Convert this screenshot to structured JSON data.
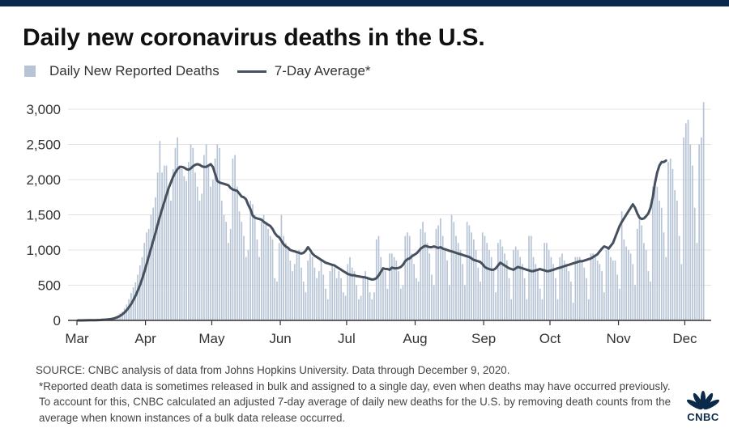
{
  "title": "Daily new coronavirus deaths in the U.S.",
  "legend": {
    "bars": "Daily New Reported Deaths",
    "line": "7-Day Average*"
  },
  "colors": {
    "bar": "#b6c4d6",
    "line": "#46505e",
    "grid": "#e3e3e3",
    "axis": "#333333",
    "brand": "#0b2a4a"
  },
  "footer": {
    "source": "SOURCE: CNBC analysis of data from Johns Hopkins University. Data through December 9, 2020.",
    "note": "*Reported death data is sometimes released in bulk and assigned to a single day, even when deaths may have occurred previously. To account for this, CNBC calculated an adjusted 7-day average of daily new deaths for the U.S. by removing death counts from the average when known instances of a bulk data release occurred."
  },
  "logo": {
    "text": "CNBC"
  },
  "chart_data": {
    "type": "bar",
    "title": "Daily new coronavirus deaths in the U.S.",
    "xlabel": "",
    "ylabel": "",
    "ylim": [
      0,
      3200
    ],
    "yticks": [
      0,
      500,
      1000,
      1500,
      2000,
      2500,
      3000
    ],
    "ytick_labels": [
      "0",
      "500",
      "1,000",
      "1,500",
      "2,000",
      "2,500",
      "3,000"
    ],
    "xticks": [
      {
        "label": "Mar",
        "day": 0
      },
      {
        "label": "Apr",
        "day": 31
      },
      {
        "label": "May",
        "day": 61
      },
      {
        "label": "Jun",
        "day": 92
      },
      {
        "label": "Jul",
        "day": 122
      },
      {
        "label": "Aug",
        "day": 153
      },
      {
        "label": "Sep",
        "day": 184
      },
      {
        "label": "Oct",
        "day": 214
      },
      {
        "label": "Nov",
        "day": 245
      },
      {
        "label": "Dec",
        "day": 275
      }
    ],
    "x_start": "2020-03-01",
    "x_end": "2020-12-09",
    "series": [
      {
        "name": "Daily New Reported Deaths",
        "type": "bar",
        "values": [
          0,
          1,
          1,
          2,
          3,
          3,
          4,
          5,
          6,
          8,
          10,
          12,
          15,
          18,
          23,
          28,
          38,
          55,
          70,
          100,
          125,
          170,
          225,
          300,
          390,
          470,
          540,
          650,
          780,
          900,
          1100,
          1250,
          1300,
          1500,
          1600,
          1750,
          2100,
          2550,
          2100,
          2200,
          2200,
          1900,
          1700,
          2150,
          2450,
          2600,
          2200,
          2150,
          2050,
          1980,
          2250,
          2500,
          2450,
          2100,
          1900,
          1700,
          1800,
          2350,
          2500,
          2200,
          1900,
          2000,
          2300,
          2500,
          2450,
          1700,
          1500,
          1400,
          1100,
          1300,
          2300,
          2350,
          1900,
          1550,
          1400,
          1200,
          900,
          1000,
          1700,
          1650,
          1500,
          1150,
          900,
          1400,
          1500,
          1400,
          1300,
          1200,
          1150,
          600,
          550,
          1100,
          1500,
          1200,
          1100,
          1050,
          850,
          700,
          800,
          950,
          1000,
          750,
          550,
          400,
          850,
          950,
          900,
          750,
          600,
          700,
          850,
          650,
          450,
          300,
          700,
          800,
          750,
          600,
          700,
          600,
          400,
          350,
          800,
          900,
          750,
          700,
          500,
          300,
          350,
          600,
          700,
          600,
          400,
          300,
          400,
          1150,
          1200,
          900,
          750,
          700,
          450,
          950,
          950,
          900,
          850,
          700,
          450,
          500,
          1200,
          1250,
          1200,
          950,
          800,
          600,
          550,
          1300,
          1400,
          1250,
          1100,
          950,
          650,
          500,
          1300,
          1350,
          1450,
          1200,
          1000,
          850,
          500,
          1500,
          1400,
          1200,
          1100,
          1000,
          800,
          500,
          1400,
          1350,
          1250,
          1150,
          1000,
          750,
          550,
          1250,
          1200,
          1100,
          1000,
          900,
          700,
          400,
          1100,
          1150,
          1050,
          950,
          850,
          600,
          300,
          1000,
          1050,
          1000,
          900,
          800,
          600,
          300,
          1200,
          1200,
          900,
          800,
          700,
          450,
          300,
          1100,
          1100,
          1000,
          900,
          800,
          600,
          300,
          900,
          950,
          850,
          800,
          700,
          550,
          250,
          900,
          900,
          900,
          850,
          750,
          600,
          300,
          950,
          950,
          900,
          850,
          800,
          700,
          400,
          1000,
          1000,
          900,
          850,
          850,
          650,
          450,
          1550,
          1150,
          1050,
          1000,
          950,
          800,
          500,
          1300,
          1450,
          1350,
          1100,
          1000,
          700,
          550,
          1900,
          2000,
          1900,
          1700,
          1600,
          1250,
          900,
          2250,
          2300,
          2150,
          1850,
          1700,
          1200,
          800,
          2600,
          2800,
          2850,
          2500,
          2200,
          1600,
          1100,
          2500,
          2600,
          3100
        ]
      },
      {
        "name": "7-Day Average*",
        "type": "line",
        "values": [
          0,
          0,
          0,
          1,
          1,
          2,
          2,
          3,
          4,
          5,
          6,
          8,
          10,
          13,
          16,
          21,
          27,
          36,
          48,
          64,
          85,
          112,
          145,
          185,
          232,
          287,
          350,
          420,
          500,
          590,
          690,
          800,
          910,
          1020,
          1130,
          1240,
          1360,
          1470,
          1580,
          1680,
          1780,
          1880,
          1960,
          2040,
          2100,
          2150,
          2180,
          2180,
          2170,
          2150,
          2140,
          2160,
          2190,
          2210,
          2220,
          2210,
          2190,
          2180,
          2180,
          2200,
          2220,
          2180,
          2080,
          1980,
          1960,
          1950,
          1940,
          1930,
          1920,
          1880,
          1860,
          1850,
          1840,
          1800,
          1760,
          1750,
          1720,
          1640,
          1580,
          1490,
          1460,
          1450,
          1440,
          1430,
          1400,
          1380,
          1360,
          1340,
          1300,
          1240,
          1200,
          1180,
          1130,
          1080,
          1050,
          1030,
          1000,
          990,
          980,
          970,
          960,
          950,
          960,
          990,
          1040,
          1000,
          950,
          920,
          900,
          880,
          860,
          840,
          820,
          810,
          800,
          790,
          780,
          760,
          740,
          720,
          700,
          680,
          660,
          650,
          640,
          640,
          630,
          625,
          620,
          615,
          610,
          600,
          590,
          580,
          585,
          600,
          640,
          690,
          740,
          730,
          730,
          720,
          750,
          740,
          740,
          745,
          760,
          790,
          840,
          870,
          880,
          910,
          930,
          950,
          980,
          1020,
          1040,
          1060,
          1050,
          1040,
          1040,
          1050,
          1040,
          1030,
          1040,
          1020,
          1010,
          1000,
          990,
          980,
          970,
          960,
          950,
          940,
          930,
          920,
          910,
          900,
          880,
          860,
          850,
          840,
          830,
          800,
          760,
          740,
          730,
          720,
          720,
          740,
          780,
          820,
          800,
          780,
          760,
          740,
          730,
          720,
          740,
          760,
          750,
          740,
          730,
          720,
          710,
          700,
          700,
          710,
          720,
          730,
          720,
          710,
          700,
          700,
          710,
          720,
          730,
          740,
          750,
          760,
          770,
          780,
          790,
          800,
          810,
          820,
          830,
          840,
          840,
          850,
          860,
          870,
          880,
          900,
          920,
          940,
          980,
          1020,
          1050,
          1040,
          1020,
          1060,
          1100,
          1180,
          1260,
          1340,
          1400,
          1450,
          1500,
          1550,
          1600,
          1650,
          1600,
          1520,
          1460,
          1440,
          1450,
          1480,
          1520,
          1600,
          1750,
          1950,
          2100,
          2200,
          2250,
          2250,
          2270
        ]
      }
    ]
  }
}
